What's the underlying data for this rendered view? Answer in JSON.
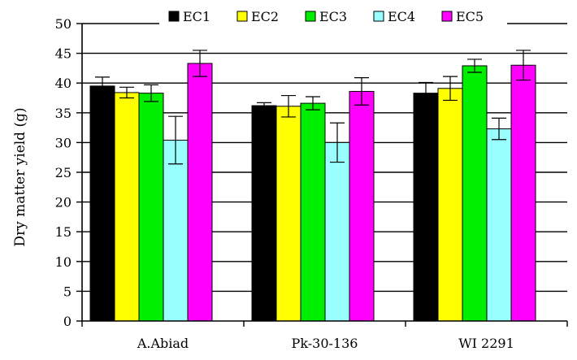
{
  "chart_data": {
    "type": "bar",
    "title": "",
    "xlabel": "",
    "ylabel": "Dry matter yield (g)",
    "ylim": [
      0,
      50
    ],
    "ytick_step": 5,
    "yticks": [
      "0",
      "5",
      "10",
      "15",
      "20",
      "25",
      "30",
      "35",
      "40",
      "45",
      "50"
    ],
    "grid": "horizontal",
    "legend_position": "top",
    "error_bars": true,
    "categories": [
      "A.Abiad",
      "Pk-30-136",
      "WI 2291"
    ],
    "series": [
      {
        "name": "EC1",
        "color": "#000000",
        "values": [
          39.5,
          36.2,
          38.3
        ],
        "errors": [
          1.5,
          0.5,
          1.8
        ]
      },
      {
        "name": "EC2",
        "color": "#ffff00",
        "values": [
          38.4,
          36.1,
          39.1
        ],
        "errors": [
          0.9,
          1.8,
          2.0
        ]
      },
      {
        "name": "EC3",
        "color": "#00ee00",
        "values": [
          38.3,
          36.6,
          42.9
        ],
        "errors": [
          1.4,
          1.1,
          1.1
        ]
      },
      {
        "name": "EC4",
        "color": "#99ffff",
        "values": [
          30.4,
          30.0,
          32.3
        ],
        "errors": [
          4.0,
          3.3,
          1.8
        ]
      },
      {
        "name": "EC5",
        "color": "#ff00ff",
        "values": [
          43.3,
          38.6,
          43.0
        ],
        "errors": [
          2.2,
          2.3,
          2.5
        ]
      }
    ]
  }
}
